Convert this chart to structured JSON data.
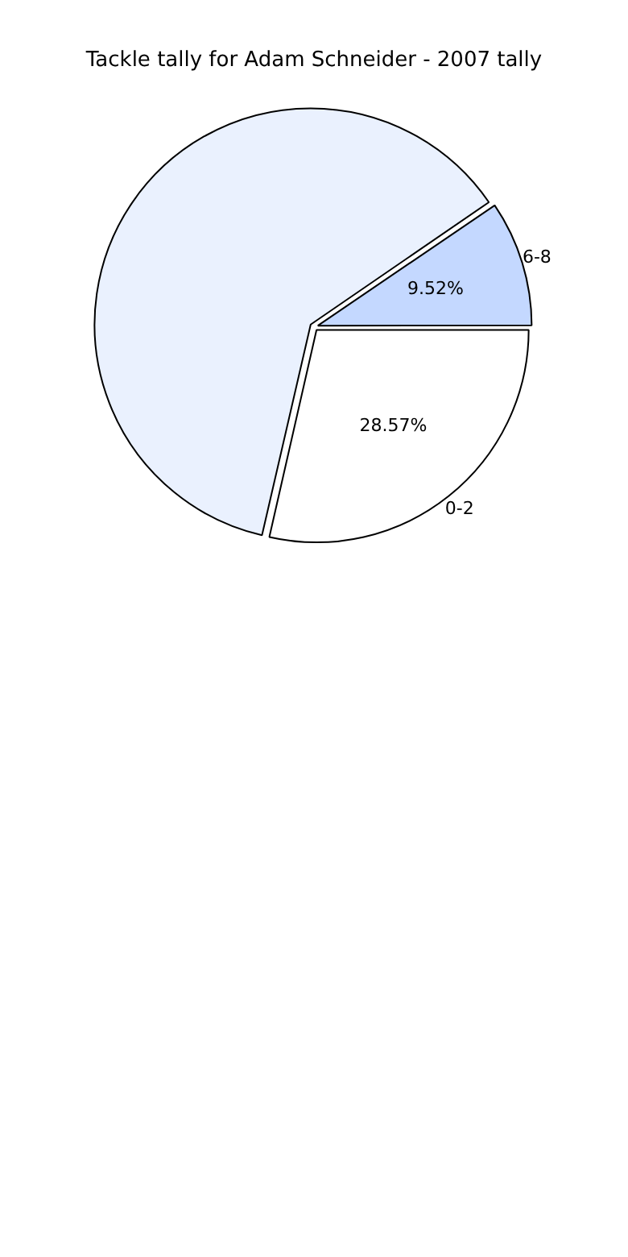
{
  "chart_data": {
    "type": "pie",
    "title": "Tackle tally for Adam Schneider - 2007 tally",
    "categories": [
      "0-2",
      null,
      "6-8"
    ],
    "values": [
      28.57,
      61.91,
      9.52
    ],
    "value_labels": [
      "28.57%",
      null,
      "9.52%"
    ],
    "colors": [
      "#ffffff",
      "#eaf1fe",
      "#c4d8ff"
    ],
    "legend": false
  }
}
